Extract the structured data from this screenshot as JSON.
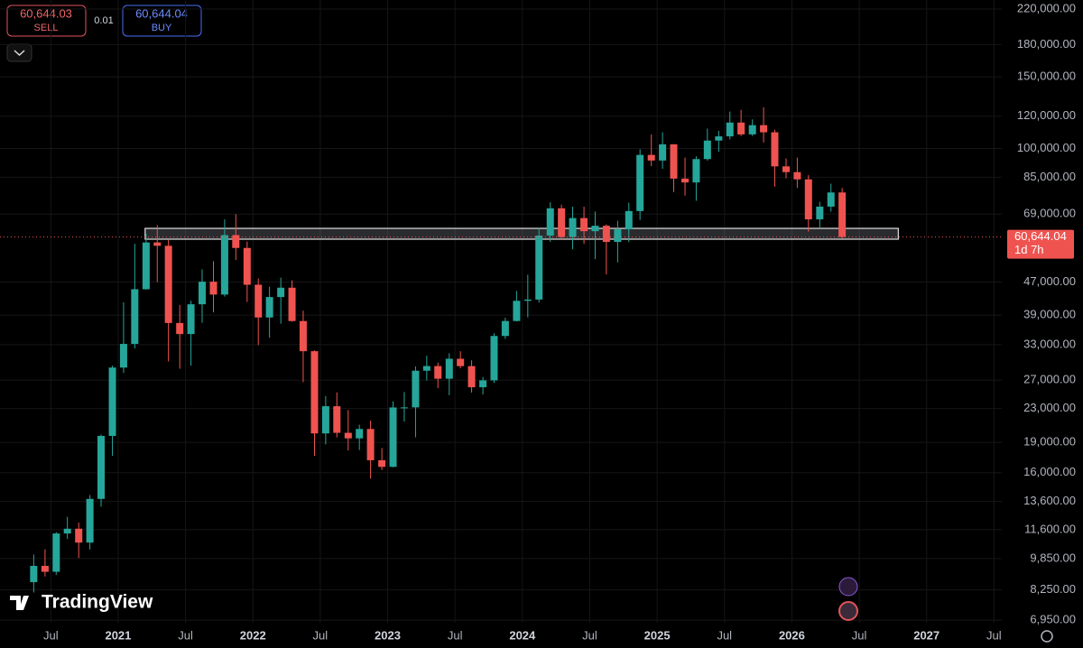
{
  "chart_data": {
    "type": "candlestick",
    "brand": "TradingView",
    "sell": {
      "price": "60,644.03",
      "label": "SELL"
    },
    "spread": "0.01",
    "buy": {
      "price": "60,644.04",
      "label": "BUY"
    },
    "price_label": {
      "value": 60644.04,
      "label": "60,644.04"
    },
    "countdown": "1d 7h",
    "up_color": "#26a69a",
    "down_color": "#ef5350",
    "log_scale": true,
    "grid": true,
    "x": [
      2020.333,
      2020.417,
      2020.5,
      2020.583,
      2020.667,
      2020.75,
      2020.833,
      2020.917,
      2021,
      2021.083,
      2021.167,
      2021.25,
      2021.333,
      2021.417,
      2021.5,
      2021.583,
      2021.667,
      2021.75,
      2021.833,
      2021.917,
      2022,
      2022.083,
      2022.167,
      2022.25,
      2022.333,
      2022.417,
      2022.5,
      2022.583,
      2022.667,
      2022.75,
      2022.833,
      2022.917,
      2023,
      2023.083,
      2023.167,
      2023.25,
      2023.333,
      2023.417,
      2023.5,
      2023.583,
      2023.667,
      2023.75,
      2023.833,
      2023.917,
      2024,
      2024.083,
      2024.167,
      2024.25,
      2024.333,
      2024.417,
      2024.5,
      2024.583,
      2024.667,
      2024.75,
      2024.833,
      2024.917,
      2025,
      2025.083,
      2025.167,
      2025.25,
      2025.333,
      2025.417,
      2025.5,
      2025.583,
      2025.667,
      2025.75,
      2025.833,
      2025.917,
      2026,
      2026.083,
      2026.167,
      2026.25,
      2026.333
    ],
    "open": [
      8620,
      9450,
      9140,
      11350,
      11660,
      10780,
      13800,
      19700,
      28990,
      33140,
      45140,
      58800,
      57700,
      37300,
      35040,
      41460,
      47100,
      43800,
      61300,
      57000,
      46300,
      38480,
      43190,
      45530,
      37710,
      31800,
      19980,
      23300,
      20050,
      19430,
      20490,
      17170,
      16540,
      23140,
      23150,
      28480,
      29240,
      27220,
      30470,
      29230,
      25940,
      26970,
      34660,
      37720,
      42280,
      42580,
      61130,
      71330,
      60640,
      67490,
      62670,
      64620,
      58970,
      63330,
      70220,
      96450,
      93430,
      102400,
      84350,
      82550,
      94200,
      104600,
      107100,
      115800,
      108300,
      114100,
      109600,
      90400,
      87500,
      84000,
      67000,
      72000,
      78000
    ],
    "high": [
      10080,
      10380,
      11440,
      12470,
      12070,
      14100,
      19860,
      29300,
      41950,
      58350,
      61780,
      64850,
      59600,
      41300,
      42300,
      50500,
      52900,
      67000,
      69000,
      59100,
      47990,
      45800,
      48190,
      47450,
      40000,
      31950,
      24670,
      25200,
      22800,
      20990,
      21480,
      18400,
      23950,
      25250,
      29180,
      31000,
      29820,
      31430,
      31800,
      30200,
      27480,
      35200,
      38430,
      44700,
      48970,
      64000,
      73800,
      72800,
      71980,
      71990,
      70000,
      65100,
      66500,
      73600,
      99600,
      108300,
      109600,
      102500,
      95000,
      95700,
      111900,
      110500,
      123200,
      124400,
      117900,
      126200,
      111200,
      94500,
      95000,
      86000,
      74000,
      82000,
      80000
    ],
    "low": [
      8130,
      8900,
      8990,
      11000,
      9880,
      10370,
      13200,
      17600,
      28130,
      32300,
      45000,
      47000,
      30000,
      28800,
      29300,
      37330,
      39600,
      43300,
      53250,
      42000,
      32900,
      34300,
      37150,
      37580,
      26700,
      17600,
      18780,
      19540,
      18150,
      18190,
      15480,
      16250,
      16500,
      21350,
      19550,
      26950,
      25810,
      24800,
      28860,
      25170,
      24900,
      26560,
      34100,
      37620,
      38500,
      41880,
      59000,
      59600,
      56550,
      58400,
      53500,
      49100,
      52550,
      58900,
      66800,
      90500,
      89160,
      78200,
      76600,
      74400,
      93400,
      98200,
      105300,
      107300,
      107300,
      103500,
      80600,
      84500,
      80000,
      62500,
      64000,
      70000,
      60200
    ],
    "close": [
      9450,
      9140,
      11350,
      11660,
      10780,
      13800,
      19700,
      28990,
      33140,
      45140,
      58800,
      57700,
      37300,
      35040,
      41460,
      47100,
      43800,
      61300,
      57000,
      46300,
      38480,
      43190,
      45530,
      37710,
      31800,
      19980,
      23300,
      20050,
      19430,
      20490,
      17170,
      16540,
      23140,
      23150,
      28480,
      29240,
      27220,
      30470,
      29230,
      25940,
      26970,
      34660,
      37720,
      42280,
      42580,
      61130,
      71330,
      60640,
      67490,
      62670,
      64620,
      58970,
      63330,
      70220,
      96450,
      93430,
      102400,
      84350,
      82550,
      94200,
      104600,
      107100,
      115800,
      108300,
      114100,
      109600,
      90400,
      87500,
      84000,
      67000,
      72000,
      78000,
      60644.04
    ],
    "zone": {
      "low": 59900,
      "high": 63670,
      "start": 2021.2,
      "end": 2026.79
    },
    "xlim": [
      2020.123,
      2027.558
    ],
    "ylim": [
      6853,
      231500
    ],
    "xticks": [
      {
        "value": 2020.5,
        "label": "Jul"
      },
      2021,
      {
        "value": 2021.5,
        "label": "Jul"
      },
      2022,
      {
        "value": 2022.5,
        "label": "Jul"
      },
      2023,
      {
        "value": 2023.5,
        "label": "Jul"
      },
      2024,
      {
        "value": 2024.5,
        "label": "Jul"
      },
      2025,
      {
        "value": 2025.5,
        "label": "Jul"
      },
      2026,
      {
        "value": 2026.5,
        "label": "Jul"
      },
      2027,
      {
        "value": 2027.5,
        "label": "Jul"
      }
    ],
    "yticks": [
      {
        "value": 6950,
        "label": "6,950.00"
      },
      {
        "value": 8250,
        "label": "8,250.00"
      },
      {
        "value": 9850,
        "label": "9,850.00"
      },
      {
        "value": 11600,
        "label": "11,600.00"
      },
      {
        "value": 13600,
        "label": "13,600.00"
      },
      {
        "value": 16000,
        "label": "16,000.00"
      },
      {
        "value": 19000,
        "label": "19,000.00"
      },
      {
        "value": 23000,
        "label": "23,000.00"
      },
      {
        "value": 27000,
        "label": "27,000.00"
      },
      {
        "value": 33000,
        "label": "33,000.00"
      },
      {
        "value": 39000,
        "label": "39,000.00"
      },
      {
        "value": 47000,
        "label": "47,000.00"
      },
      {
        "value": 69000,
        "label": "69,000.00"
      },
      {
        "value": 85000,
        "label": "85,000.00"
      },
      {
        "value": 100000,
        "label": "100,000.00"
      },
      {
        "value": 120000,
        "label": "120,000.00"
      },
      {
        "value": 150000,
        "label": "150,000.00"
      },
      {
        "value": 180000,
        "label": "180,000.00"
      },
      {
        "value": 220000,
        "label": "220,000.00"
      }
    ]
  }
}
